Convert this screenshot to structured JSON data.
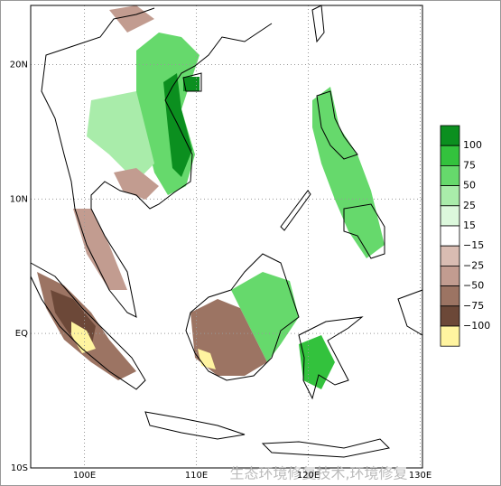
{
  "map": {
    "xlim": [
      95.2,
      130.2
    ],
    "ylim": [
      -10,
      24.4
    ],
    "xticks": [
      {
        "value": 100,
        "label": "100E"
      },
      {
        "value": 110,
        "label": "110E"
      },
      {
        "value": 120,
        "label": "120E"
      },
      {
        "value": 130,
        "label": "130E"
      }
    ],
    "yticks": [
      {
        "value": 20,
        "label": "20N"
      },
      {
        "value": 10,
        "label": "10N"
      },
      {
        "value": 0,
        "label": "EQ"
      },
      {
        "value": -10,
        "label": "10S"
      }
    ],
    "grid": true,
    "legend": {
      "colors": [
        "#0b8f1f",
        "#33c23d",
        "#66d96c",
        "#a9ecaa",
        "#dcf8dc",
        "#ffffff",
        "#d9bcb2",
        "#c29c90",
        "#9c7463",
        "#6c4838",
        "#fff4a0"
      ],
      "labels": [
        "100",
        "75",
        "50",
        "25",
        "15",
        "−15",
        "−25",
        "−50",
        "−75",
        "−100"
      ]
    },
    "watermark": "生态环境修复技术,环境修复"
  }
}
